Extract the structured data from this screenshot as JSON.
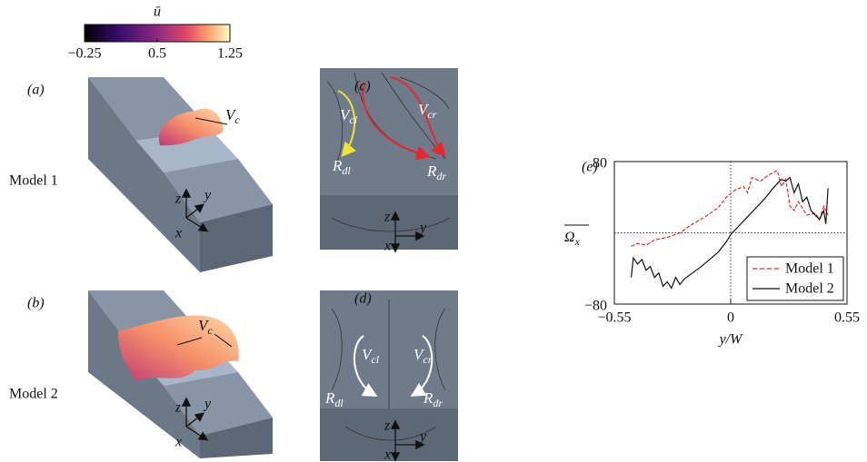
{
  "colorbar": {
    "label": "ū",
    "lim": [
      -0.25,
      1.25
    ],
    "ticks": [
      {
        "value": -0.25,
        "label": "−0.25"
      },
      0.5,
      1.25
    ]
  },
  "rows": [
    "Model 1",
    "Model 2"
  ],
  "panels": [
    {
      "label": "(a)",
      "annotations": [
        {
          "main": "V",
          "sub": "c"
        }
      ],
      "axes": [
        "z",
        "y",
        "x"
      ]
    },
    {
      "label": "(b)",
      "annotations": [
        {
          "main": "V",
          "sub": "c"
        }
      ],
      "axes": [
        "z",
        "y",
        "x"
      ]
    },
    {
      "label": "(c)",
      "annotations": [
        {
          "main": "V",
          "sub": "cl"
        },
        {
          "main": "V",
          "sub": "cr"
        },
        {
          "main": "R",
          "sub": "dl"
        },
        {
          "main": "R",
          "sub": "dr"
        }
      ],
      "axes": [
        "z",
        "x",
        "y"
      ]
    },
    {
      "label": "(d)",
      "annotations": [
        {
          "main": "V",
          "sub": "cl"
        },
        {
          "main": "V",
          "sub": "cr"
        },
        {
          "main": "R",
          "sub": "dl"
        },
        {
          "main": "R",
          "sub": "dr"
        }
      ],
      "axes": [
        "z",
        "x",
        "y"
      ]
    }
  ],
  "chart_data": {
    "type": "line",
    "panel_label": "(e)",
    "xlabel": "y/W",
    "ylabel": {
      "main": "Ω",
      "sub": "x"
    },
    "xlim": [
      -0.55,
      0.55
    ],
    "xticks": [
      {
        "value": -0.55,
        "label": "−0.55"
      },
      0,
      0.55
    ],
    "ylim": [
      -80,
      80
    ],
    "yticks": [
      {
        "value": -80,
        "label": "−80"
      },
      80
    ],
    "zero_lines": true,
    "legend": "lower right",
    "series": [
      {
        "name": "Model 1",
        "color": "#e8282b",
        "dash": true,
        "x": [
          -0.47,
          -0.44,
          -0.4,
          -0.36,
          -0.3,
          -0.24,
          -0.18,
          -0.12,
          -0.06,
          -0.02,
          0.02,
          0.06,
          0.08,
          0.1,
          0.14,
          0.18,
          0.22,
          0.24,
          0.26,
          0.28,
          0.3,
          0.32,
          0.36,
          0.4,
          0.42,
          0.44,
          0.46
        ],
        "values": [
          -15,
          -12,
          -14,
          -8,
          -5,
          0,
          10,
          18,
          28,
          40,
          48,
          52,
          45,
          62,
          58,
          65,
          70,
          52,
          60,
          30,
          25,
          35,
          20,
          22,
          15,
          30,
          20
        ]
      },
      {
        "name": "Model 2",
        "color": "#111111",
        "dash": false,
        "x": [
          -0.47,
          -0.46,
          -0.44,
          -0.42,
          -0.4,
          -0.38,
          -0.36,
          -0.34,
          -0.32,
          -0.3,
          -0.28,
          -0.26,
          -0.24,
          -0.22,
          -0.18,
          -0.14,
          -0.1,
          -0.06,
          -0.02,
          0,
          0.04,
          0.08,
          0.12,
          0.16,
          0.2,
          0.24,
          0.26,
          0.28,
          0.3,
          0.32,
          0.34,
          0.36,
          0.38,
          0.4,
          0.42,
          0.44,
          0.45,
          0.46
        ],
        "values": [
          -50,
          -28,
          -35,
          -30,
          -42,
          -38,
          -50,
          -45,
          -60,
          -55,
          -62,
          -50,
          -58,
          -52,
          -45,
          -38,
          -30,
          -22,
          -10,
          -2,
          8,
          18,
          28,
          38,
          50,
          60,
          58,
          62,
          45,
          55,
          35,
          40,
          25,
          20,
          15,
          25,
          10,
          50
        ]
      }
    ]
  }
}
